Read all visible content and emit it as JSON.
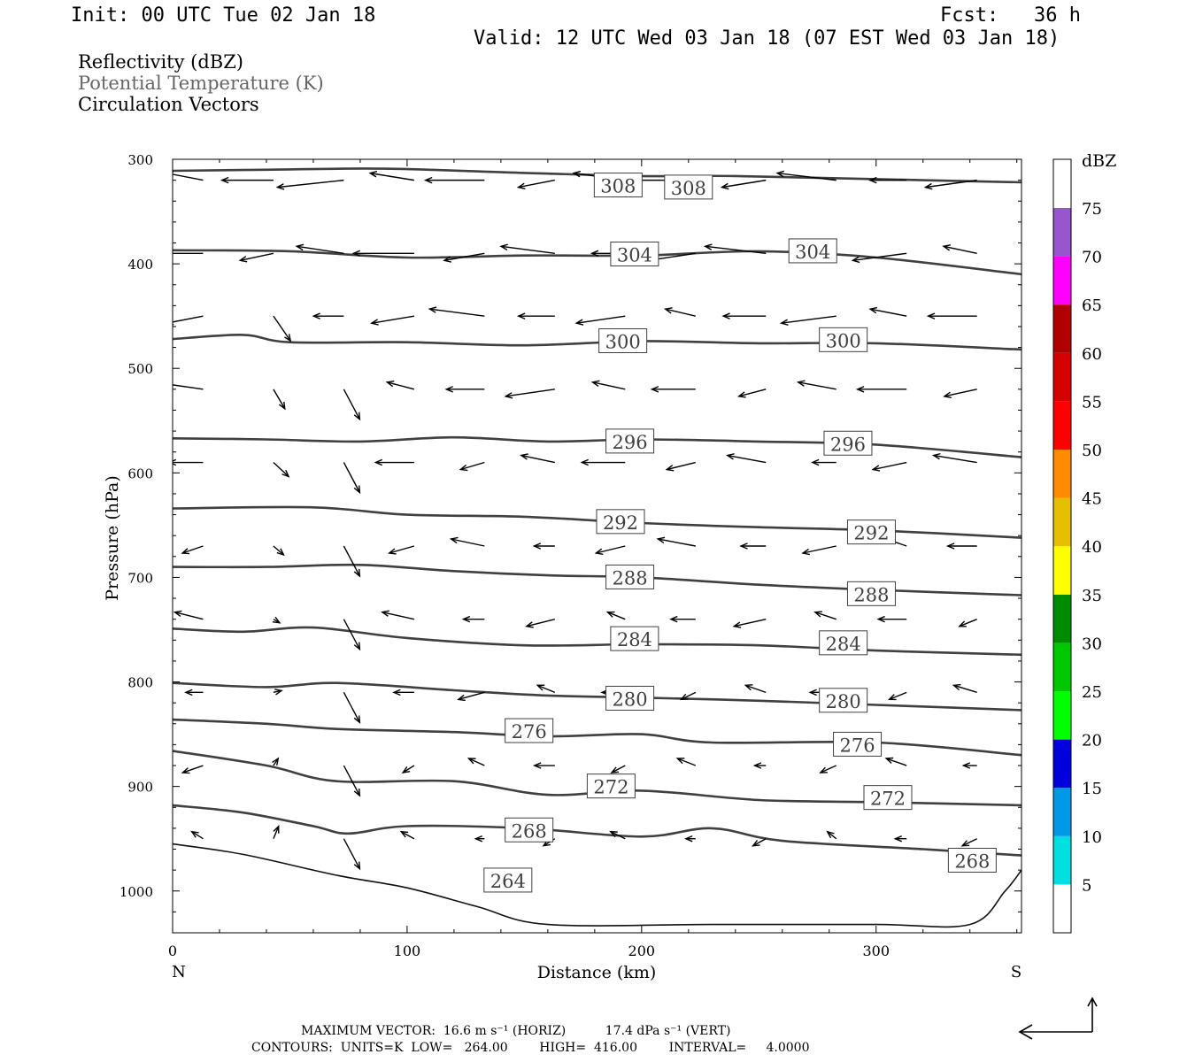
{
  "header": {
    "init": "Init: 00 UTC Tue 02 Jan 18",
    "fcst": "Fcst:   36 h",
    "valid": "Valid: 12 UTC Wed 03 Jan 18 (07 EST Wed 03 Jan 18)"
  },
  "legend": {
    "line1": "Reflectivity (dBZ)",
    "line2": "Potential Temperature (K)",
    "line3": "Circulation Vectors",
    "line2_color": "#666666"
  },
  "footer": {
    "line1": "MAXIMUM VECTOR:  16.6 m s⁻¹ (HORIZ)          17.4 dPa s⁻¹ (VERT)",
    "line2": "CONTOURS:  UNITS=K  LOW=   264.00        HIGH=  416.00        INTERVAL=     4.0000"
  },
  "colorbar": {
    "title": "dBZ",
    "levels": [
      "5",
      "10",
      "15",
      "20",
      "25",
      "30",
      "35",
      "40",
      "45",
      "50",
      "55",
      "60",
      "65",
      "70",
      "75"
    ],
    "colors": [
      "#ffffff",
      "#00e0e0",
      "#0099e6",
      "#0000dd",
      "#00ff00",
      "#00c800",
      "#008c00",
      "#ffff00",
      "#e6bf00",
      "#ff8c00",
      "#ff0000",
      "#d60000",
      "#b00000",
      "#ff00ff",
      "#9955cc",
      "#ffffff"
    ]
  },
  "chart_data": {
    "type": "contour",
    "xlabel": "Distance (km)",
    "ylabel": "Pressure (hPa)",
    "xlim": [
      0,
      362
    ],
    "ylim": [
      1040,
      300
    ],
    "x_ticks": [
      "0",
      "100",
      "200",
      "300"
    ],
    "y_ticks": [
      "300",
      "400",
      "500",
      "600",
      "700",
      "800",
      "900",
      "1000"
    ],
    "x_end_labels": {
      "left": "N",
      "right": "S"
    },
    "contours": [
      {
        "level": 308,
        "pts": [
          [
            0,
            311
          ],
          [
            40,
            310
          ],
          [
            90,
            309
          ],
          [
            150,
            313
          ],
          [
            200,
            316
          ],
          [
            240,
            316
          ],
          [
            300,
            319
          ],
          [
            362,
            322
          ]
        ],
        "labels": [
          [
            190,
            325
          ],
          [
            220,
            327
          ]
        ]
      },
      {
        "level": 304,
        "pts": [
          [
            0,
            387
          ],
          [
            50,
            388
          ],
          [
            100,
            394
          ],
          [
            150,
            392
          ],
          [
            200,
            392
          ],
          [
            250,
            388
          ],
          [
            300,
            394
          ],
          [
            362,
            410
          ]
        ],
        "labels": [
          [
            197,
            391
          ],
          [
            273,
            388
          ]
        ]
      },
      {
        "level": 300,
        "pts": [
          [
            0,
            472
          ],
          [
            30,
            468
          ],
          [
            50,
            475
          ],
          [
            100,
            475
          ],
          [
            150,
            478
          ],
          [
            200,
            474
          ],
          [
            250,
            476
          ],
          [
            300,
            476
          ],
          [
            362,
            482
          ]
        ],
        "labels": [
          [
            192,
            474
          ],
          [
            286,
            473
          ]
        ]
      },
      {
        "level": 296,
        "pts": [
          [
            0,
            567
          ],
          [
            40,
            568
          ],
          [
            80,
            570
          ],
          [
            120,
            566
          ],
          [
            160,
            570
          ],
          [
            200,
            568
          ],
          [
            250,
            570
          ],
          [
            300,
            573
          ],
          [
            362,
            585
          ]
        ],
        "labels": [
          [
            195,
            570
          ],
          [
            288,
            572
          ]
        ]
      },
      {
        "level": 292,
        "pts": [
          [
            0,
            634
          ],
          [
            60,
            633
          ],
          [
            100,
            640
          ],
          [
            150,
            642
          ],
          [
            200,
            648
          ],
          [
            250,
            652
          ],
          [
            300,
            655
          ],
          [
            362,
            662
          ]
        ],
        "labels": [
          [
            191,
            647
          ],
          [
            298,
            657
          ]
        ]
      },
      {
        "level": 288,
        "pts": [
          [
            0,
            690
          ],
          [
            40,
            690
          ],
          [
            80,
            688
          ],
          [
            120,
            694
          ],
          [
            160,
            698
          ],
          [
            200,
            700
          ],
          [
            250,
            707
          ],
          [
            300,
            712
          ],
          [
            362,
            717
          ]
        ],
        "labels": [
          [
            195,
            700
          ],
          [
            298,
            716
          ]
        ]
      },
      {
        "level": 284,
        "pts": [
          [
            0,
            749
          ],
          [
            30,
            752
          ],
          [
            60,
            748
          ],
          [
            100,
            758
          ],
          [
            150,
            765
          ],
          [
            200,
            764
          ],
          [
            250,
            765
          ],
          [
            300,
            770
          ],
          [
            362,
            774
          ]
        ],
        "labels": [
          [
            197,
            759
          ],
          [
            286,
            763
          ]
        ]
      },
      {
        "level": 280,
        "pts": [
          [
            0,
            801
          ],
          [
            40,
            805
          ],
          [
            70,
            801
          ],
          [
            120,
            808
          ],
          [
            160,
            813
          ],
          [
            200,
            815
          ],
          [
            250,
            818
          ],
          [
            300,
            822
          ],
          [
            362,
            827
          ]
        ],
        "labels": [
          [
            195,
            816
          ],
          [
            286,
            818
          ]
        ]
      },
      {
        "level": 276,
        "pts": [
          [
            0,
            836
          ],
          [
            40,
            840
          ],
          [
            70,
            845
          ],
          [
            120,
            848
          ],
          [
            160,
            852
          ],
          [
            200,
            850
          ],
          [
            230,
            858
          ],
          [
            300,
            858
          ],
          [
            362,
            870
          ]
        ],
        "labels": [
          [
            152,
            847
          ],
          [
            292,
            860
          ]
        ]
      },
      {
        "level": 272,
        "pts": [
          [
            0,
            866
          ],
          [
            40,
            880
          ],
          [
            70,
            895
          ],
          [
            120,
            895
          ],
          [
            160,
            908
          ],
          [
            200,
            904
          ],
          [
            250,
            913
          ],
          [
            300,
            915
          ],
          [
            362,
            918
          ]
        ],
        "labels": [
          [
            187,
            900
          ],
          [
            305,
            911
          ]
        ]
      },
      {
        "level": 268,
        "pts": [
          [
            0,
            918
          ],
          [
            30,
            925
          ],
          [
            60,
            938
          ],
          [
            75,
            945
          ],
          [
            100,
            938
          ],
          [
            150,
            940
          ],
          [
            200,
            948
          ],
          [
            230,
            940
          ],
          [
            260,
            952
          ],
          [
            320,
            960
          ],
          [
            362,
            966
          ]
        ],
        "labels": [
          [
            152,
            942
          ],
          [
            341,
            971
          ]
        ]
      },
      {
        "level": 264,
        "pts": [
          [
            0,
            955
          ],
          [
            30,
            965
          ],
          [
            70,
            985
          ],
          [
            100,
            997
          ],
          [
            130,
            1015
          ],
          [
            160,
            1032
          ],
          [
            230,
            1032
          ],
          [
            300,
            1032
          ],
          [
            340,
            1032
          ],
          [
            355,
            1000
          ],
          [
            362,
            980
          ]
        ],
        "labels": [
          [
            143,
            990
          ]
        ]
      }
    ],
    "vectors_grid": {
      "x": [
        5,
        35,
        65,
        95,
        125,
        155,
        185,
        215,
        245,
        275,
        305,
        335
      ],
      "p": [
        320,
        390,
        450,
        520,
        590,
        670,
        740,
        810,
        880,
        950
      ]
    }
  }
}
